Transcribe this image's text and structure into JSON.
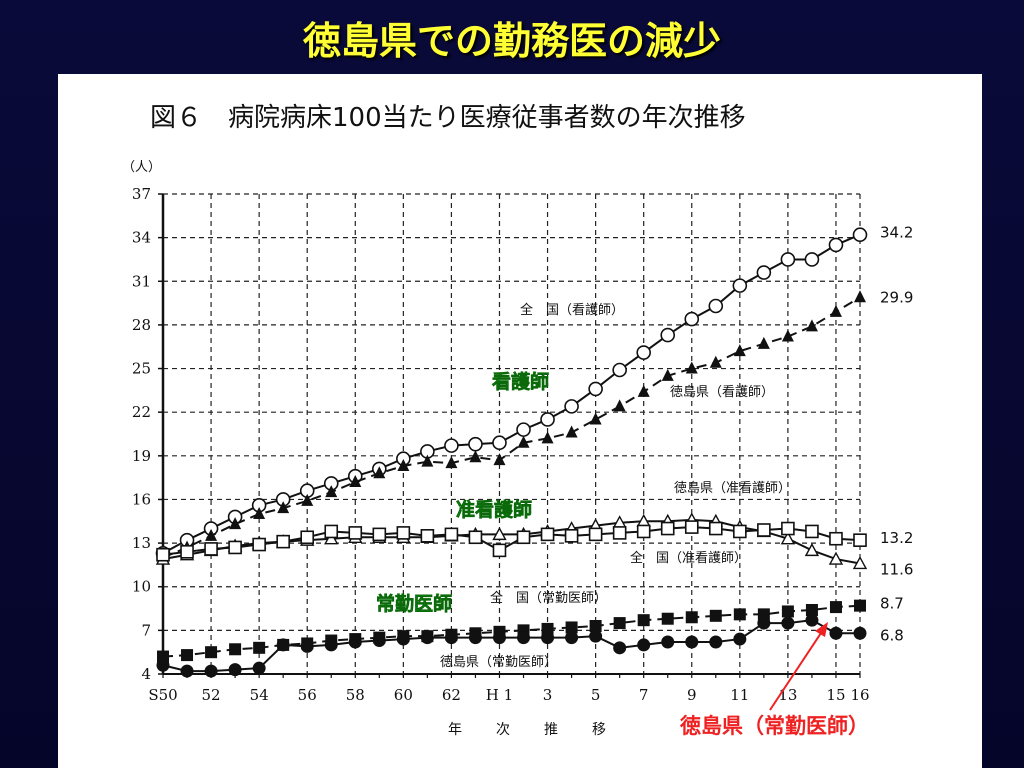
{
  "slide": {
    "title": "徳島県での勤務医の減少"
  },
  "chart_data": {
    "type": "line",
    "title": "図６　病院病床100当たり医療従事者数の年次推移",
    "ylabel": "（人）",
    "xlabel": "年　次　推　移",
    "ylim": [
      4,
      37
    ],
    "yticks": [
      4,
      7,
      10,
      13,
      16,
      19,
      22,
      25,
      28,
      31,
      34,
      37
    ],
    "x": [
      "S50",
      "51",
      "52",
      "53",
      "54",
      "55",
      "56",
      "57",
      "58",
      "59",
      "60",
      "61",
      "62",
      "63",
      "H1",
      "2",
      "3",
      "4",
      "5",
      "6",
      "7",
      "8",
      "9",
      "10",
      "11",
      "12",
      "13",
      "14",
      "15",
      "16"
    ],
    "xtick_labels": [
      "S50",
      "",
      "52",
      "",
      "54",
      "",
      "56",
      "",
      "58",
      "",
      "60",
      "",
      "62",
      "",
      "H 1",
      "",
      "3",
      "",
      "5",
      "",
      "7",
      "",
      "9",
      "",
      "11",
      "",
      "13",
      "",
      "15",
      "16"
    ],
    "grid": true,
    "series": [
      {
        "name": "全　国（看護師）",
        "marker": "open-circle",
        "style": "solid",
        "values": [
          12.3,
          13.2,
          14.0,
          14.8,
          15.6,
          16.0,
          16.6,
          17.1,
          17.6,
          18.1,
          18.8,
          19.3,
          19.7,
          19.8,
          19.9,
          20.8,
          21.5,
          22.4,
          23.6,
          24.9,
          26.1,
          27.3,
          28.4,
          29.3,
          30.7,
          31.6,
          32.5,
          32.5,
          33.5,
          34.2
        ],
        "end_label": "34.2"
      },
      {
        "name": "徳島県（看護師）",
        "marker": "filled-triangle",
        "style": "dashed",
        "values": [
          12.0,
          12.7,
          13.5,
          14.3,
          15.0,
          15.4,
          15.9,
          16.5,
          17.2,
          17.8,
          18.3,
          18.6,
          18.5,
          18.9,
          18.7,
          19.9,
          20.2,
          20.6,
          21.5,
          22.4,
          23.4,
          24.5,
          25.0,
          25.4,
          26.2,
          26.7,
          27.2,
          27.9,
          28.9,
          29.9
        ],
        "end_label": "29.9"
      },
      {
        "name": "全　国（准看護師）",
        "marker": "open-triangle",
        "style": "solid",
        "values": [
          11.9,
          12.2,
          12.5,
          12.8,
          13.0,
          13.1,
          13.2,
          13.3,
          13.4,
          13.4,
          13.4,
          13.4,
          13.5,
          13.6,
          13.6,
          13.6,
          13.8,
          14.0,
          14.2,
          14.4,
          14.5,
          14.5,
          14.6,
          14.5,
          14.1,
          13.8,
          13.3,
          12.5,
          11.9,
          11.6
        ],
        "end_label": "11.6"
      },
      {
        "name": "徳島県（准看護師）",
        "marker": "open-square",
        "style": "solid",
        "values": [
          12.2,
          12.4,
          12.6,
          12.7,
          12.9,
          13.1,
          13.4,
          13.8,
          13.7,
          13.6,
          13.7,
          13.5,
          13.6,
          13.4,
          12.5,
          13.4,
          13.6,
          13.5,
          13.6,
          13.7,
          13.8,
          14.0,
          14.1,
          14.0,
          13.8,
          13.9,
          14.0,
          13.8,
          13.3,
          13.2
        ],
        "end_label": "13.2"
      },
      {
        "name": "全　国（常勤医師）",
        "marker": "filled-square",
        "style": "dashed",
        "values": [
          5.2,
          5.3,
          5.5,
          5.7,
          5.8,
          6.0,
          6.1,
          6.3,
          6.4,
          6.5,
          6.6,
          6.6,
          6.7,
          6.8,
          6.9,
          7.0,
          7.1,
          7.2,
          7.3,
          7.5,
          7.7,
          7.8,
          7.9,
          8.0,
          8.1,
          8.1,
          8.3,
          8.4,
          8.6,
          8.7
        ],
        "end_label": "8.7"
      },
      {
        "name": "徳島県（常勤医師）",
        "marker": "filled-circle",
        "style": "solid",
        "values": [
          4.6,
          4.2,
          4.2,
          4.3,
          4.4,
          6.0,
          5.9,
          6.0,
          6.2,
          6.3,
          6.4,
          6.5,
          6.5,
          6.5,
          6.5,
          6.5,
          6.5,
          6.5,
          6.6,
          5.8,
          6.0,
          6.2,
          6.2,
          6.2,
          6.4,
          7.5,
          7.5,
          7.7,
          6.8,
          6.8
        ],
        "end_label": "6.8"
      }
    ],
    "group_labels": {
      "nurse": "看護師",
      "assoc": "准看護師",
      "doctor": "常勤医師"
    },
    "callout": "徳島県（常勤医師）"
  }
}
